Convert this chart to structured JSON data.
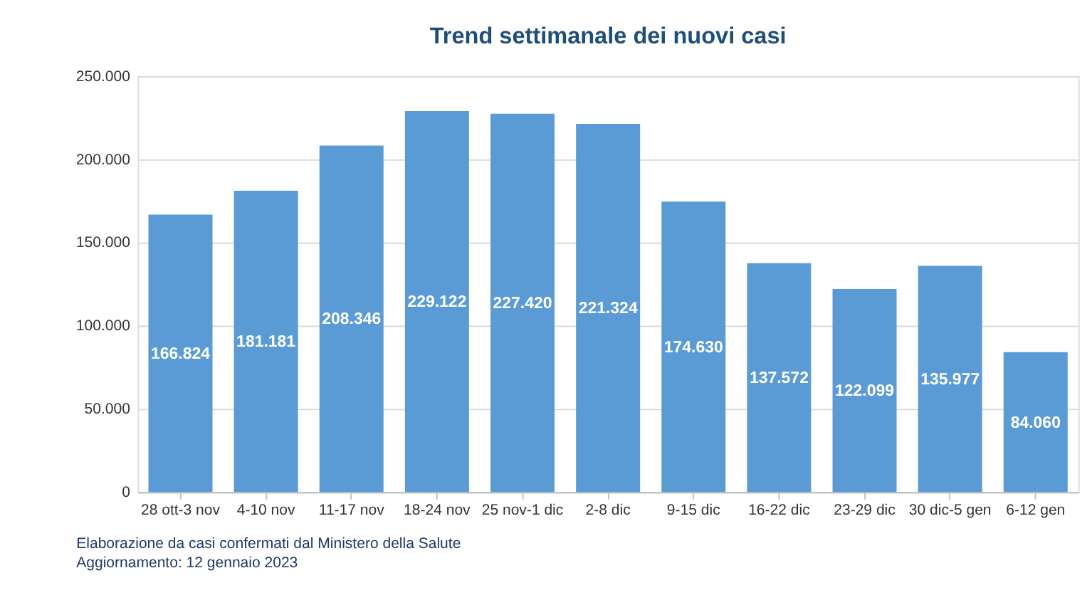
{
  "chart_data": {
    "type": "bar",
    "title": "Trend settimanale dei nuovi casi",
    "categories": [
      "28 ott-3 nov",
      "4-10 nov",
      "11-17 nov",
      "18-24 nov",
      "25 nov-1 dic",
      "2-8 dic",
      "9-15 dic",
      "16-22 dic",
      "23-29 dic",
      "30 dic-5 gen",
      "6-12 gen"
    ],
    "values": [
      166824,
      181181,
      208346,
      229122,
      227420,
      221324,
      174630,
      137572,
      122099,
      135977,
      84060
    ],
    "value_labels": [
      "166.824",
      "181.181",
      "208.346",
      "229.122",
      "227.420",
      "221.324",
      "174.630",
      "137.572",
      "122.099",
      "135.977",
      "84.060"
    ],
    "color": "#5b9bd5",
    "ylim": [
      0,
      250000
    ],
    "yticks": [
      0,
      {
        "value": 50000,
        "label": "50.000"
      },
      {
        "value": 100000,
        "label": "100.000"
      },
      {
        "value": 150000,
        "label": "150.000"
      },
      {
        "value": 200000,
        "label": "200.000"
      },
      {
        "value": 250000,
        "label": "250.000"
      }
    ],
    "grid": "y",
    "annotations": [
      "Elaborazione da casi confermati dal Ministero della Salute",
      "Aggiornamento: 12 gennaio 2023"
    ]
  }
}
